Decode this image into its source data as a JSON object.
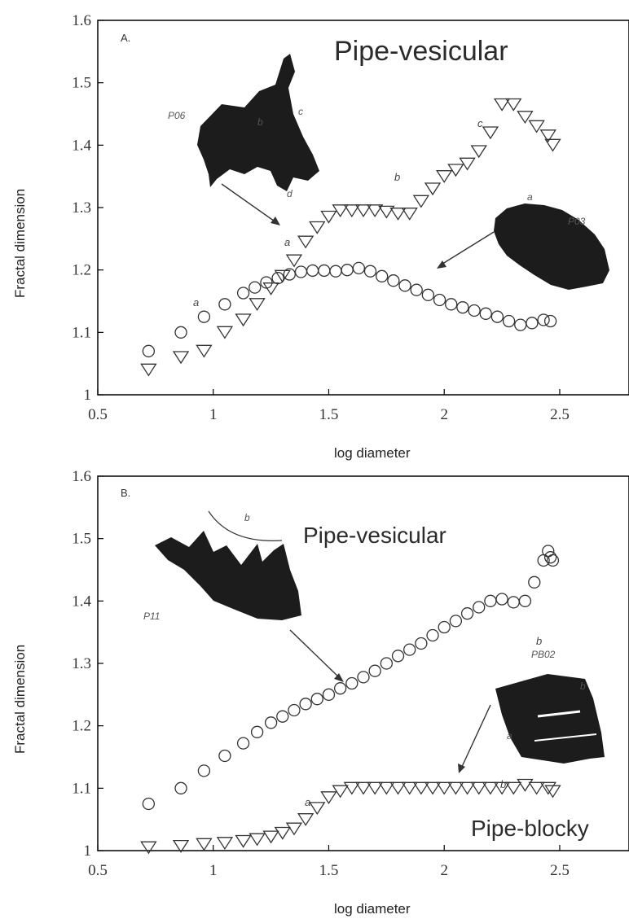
{
  "chart_data": [
    {
      "type": "scatter",
      "panel_label": "A.",
      "title": "Pipe-vesicular",
      "xlabel": "log diameter",
      "ylabel": "Fractal dimension",
      "xlim": [
        0.5,
        2.8
      ],
      "ylim": [
        1.0,
        1.6
      ],
      "xticks": [
        "0.5",
        "1",
        "1.5",
        "2",
        "2.5"
      ],
      "yticks": [
        "1",
        "1.1",
        "1.2",
        "1.3",
        "1.4",
        "1.5",
        "1.6"
      ],
      "series": [
        {
          "name": "P03",
          "marker": "circle",
          "x": [
            0.72,
            0.86,
            0.96,
            1.05,
            1.13,
            1.18,
            1.23,
            1.28,
            1.33,
            1.38,
            1.43,
            1.48,
            1.53,
            1.58,
            1.63,
            1.68,
            1.73,
            1.78,
            1.83,
            1.88,
            1.93,
            1.98,
            2.03,
            2.08,
            2.13,
            2.18,
            2.23,
            2.28,
            2.33,
            2.38,
            2.43,
            2.46
          ],
          "y": [
            1.07,
            1.1,
            1.125,
            1.145,
            1.163,
            1.172,
            1.18,
            1.187,
            1.193,
            1.197,
            1.199,
            1.199,
            1.198,
            1.2,
            1.203,
            1.198,
            1.19,
            1.183,
            1.175,
            1.168,
            1.16,
            1.152,
            1.145,
            1.14,
            1.135,
            1.13,
            1.125,
            1.118,
            1.112,
            1.115,
            1.12,
            1.118
          ]
        },
        {
          "name": "P06",
          "marker": "triangle-down",
          "x": [
            0.72,
            0.86,
            0.96,
            1.05,
            1.13,
            1.19,
            1.25,
            1.3,
            1.35,
            1.4,
            1.45,
            1.5,
            1.55,
            1.6,
            1.65,
            1.7,
            1.75,
            1.8,
            1.85,
            1.9,
            1.95,
            2.0,
            2.05,
            2.1,
            2.15,
            2.2,
            2.25,
            2.3,
            2.35,
            2.4,
            2.45,
            2.47
          ],
          "y": [
            1.04,
            1.06,
            1.07,
            1.1,
            1.12,
            1.145,
            1.17,
            1.19,
            1.215,
            1.245,
            1.268,
            1.285,
            1.295,
            1.295,
            1.295,
            1.295,
            1.293,
            1.29,
            1.29,
            1.31,
            1.33,
            1.35,
            1.36,
            1.37,
            1.39,
            1.42,
            1.465,
            1.465,
            1.445,
            1.43,
            1.415,
            1.4
          ]
        }
      ],
      "annotations": [
        "P06",
        "P03",
        "a",
        "b",
        "c",
        "d",
        "a",
        "b",
        "c",
        "a"
      ]
    },
    {
      "type": "scatter",
      "panel_label": "B.",
      "title": "Pipe-vesicular",
      "title2": "Pipe-blocky",
      "xlabel": "log diameter",
      "ylabel": "Fractal dimension",
      "xlim": [
        0.5,
        2.8
      ],
      "ylim": [
        1.0,
        1.6
      ],
      "xticks": [
        "0.5",
        "1",
        "1.5",
        "2",
        "2.5"
      ],
      "yticks": [
        "1",
        "1.1",
        "1.2",
        "1.3",
        "1.4",
        "1.5",
        "1.6"
      ],
      "series": [
        {
          "name": "P11",
          "marker": "circle",
          "x": [
            0.72,
            0.86,
            0.96,
            1.05,
            1.13,
            1.19,
            1.25,
            1.3,
            1.35,
            1.4,
            1.45,
            1.5,
            1.55,
            1.6,
            1.65,
            1.7,
            1.75,
            1.8,
            1.85,
            1.9,
            1.95,
            2.0,
            2.05,
            2.1,
            2.15,
            2.2,
            2.25,
            2.3,
            2.35,
            2.39,
            2.43,
            2.45,
            2.46,
            2.47
          ],
          "y": [
            1.075,
            1.1,
            1.128,
            1.152,
            1.172,
            1.19,
            1.205,
            1.215,
            1.225,
            1.235,
            1.243,
            1.25,
            1.26,
            1.268,
            1.278,
            1.288,
            1.3,
            1.312,
            1.322,
            1.332,
            1.345,
            1.358,
            1.368,
            1.38,
            1.39,
            1.4,
            1.403,
            1.398,
            1.4,
            1.43,
            1.465,
            1.48,
            1.47,
            1.465
          ]
        },
        {
          "name": "PB02",
          "marker": "triangle-down",
          "x": [
            0.72,
            0.86,
            0.96,
            1.05,
            1.13,
            1.19,
            1.25,
            1.3,
            1.35,
            1.4,
            1.45,
            1.5,
            1.55,
            1.6,
            1.65,
            1.7,
            1.75,
            1.8,
            1.85,
            1.9,
            1.95,
            2.0,
            2.05,
            2.1,
            2.15,
            2.2,
            2.25,
            2.3,
            2.35,
            2.4,
            2.45,
            2.47
          ],
          "y": [
            1.005,
            1.007,
            1.01,
            1.012,
            1.015,
            1.018,
            1.022,
            1.028,
            1.035,
            1.05,
            1.068,
            1.085,
            1.095,
            1.1,
            1.1,
            1.1,
            1.1,
            1.1,
            1.1,
            1.1,
            1.1,
            1.1,
            1.1,
            1.1,
            1.1,
            1.1,
            1.1,
            1.1,
            1.105,
            1.1,
            1.1,
            1.095
          ]
        }
      ],
      "annotations": [
        "P11",
        "PB02",
        "b",
        "b",
        "b",
        "a",
        "b",
        "a"
      ]
    }
  ]
}
